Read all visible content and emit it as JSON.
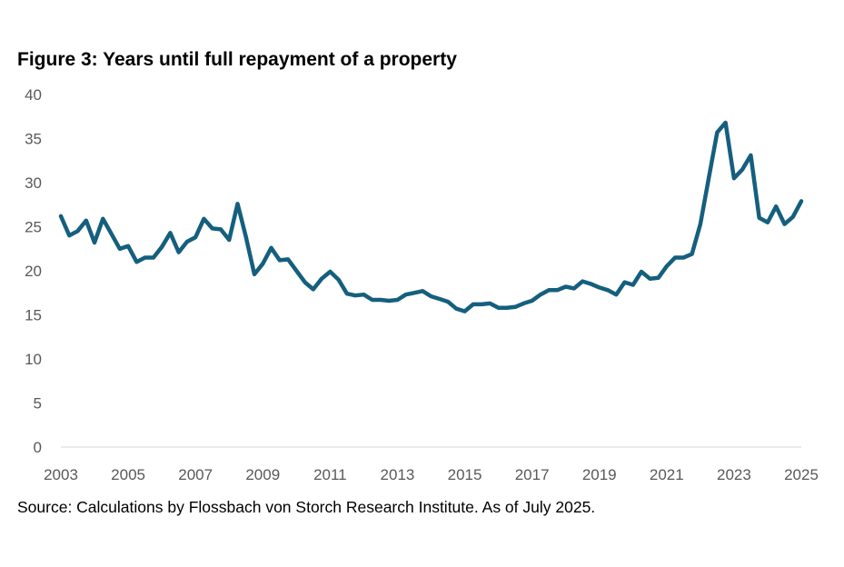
{
  "chart_data": {
    "type": "line",
    "title": "Figure 3: Years until full repayment of a property",
    "source": "Source: Calculations by Flossbach von Storch Research Institute. As of July 2025.",
    "xlabel": "",
    "ylabel": "",
    "ylim": [
      0,
      40
    ],
    "xlim": [
      2003,
      2025
    ],
    "yticks": [
      "0",
      "5",
      "10",
      "15",
      "20",
      "25",
      "30",
      "35",
      "40"
    ],
    "xticks": [
      "2003",
      "2005",
      "2007",
      "2009",
      "2011",
      "2013",
      "2015",
      "2017",
      "2019",
      "2021",
      "2023",
      "2025"
    ],
    "grid": false,
    "line_color": "#155f7e",
    "series": [
      {
        "name": "Years until full repayment",
        "x_start": 2003,
        "x_step": 0.25,
        "values": [
          26.2,
          24.0,
          24.5,
          25.7,
          23.2,
          25.9,
          24.2,
          22.5,
          22.8,
          21.0,
          21.5,
          21.5,
          22.7,
          24.3,
          22.1,
          23.3,
          23.8,
          25.9,
          24.8,
          24.7,
          23.5,
          27.6,
          23.8,
          19.6,
          20.8,
          22.6,
          21.2,
          21.3,
          20.0,
          18.7,
          17.9,
          19.1,
          19.9,
          19.0,
          17.4,
          17.2,
          17.3,
          16.7,
          16.7,
          16.6,
          16.7,
          17.3,
          17.5,
          17.7,
          17.1,
          16.8,
          16.5,
          15.7,
          15.4,
          16.2,
          16.2,
          16.3,
          15.8,
          15.8,
          15.9,
          16.3,
          16.6,
          17.3,
          17.8,
          17.8,
          18.2,
          18.0,
          18.8,
          18.5,
          18.1,
          17.8,
          17.3,
          18.7,
          18.4,
          19.9,
          19.1,
          19.2,
          20.5,
          21.5,
          21.5,
          21.9,
          25.3,
          30.5,
          35.7,
          36.8,
          30.5,
          31.5,
          33.1,
          26.0,
          25.5,
          27.3,
          25.3,
          26.1,
          27.9
        ]
      }
    ]
  }
}
